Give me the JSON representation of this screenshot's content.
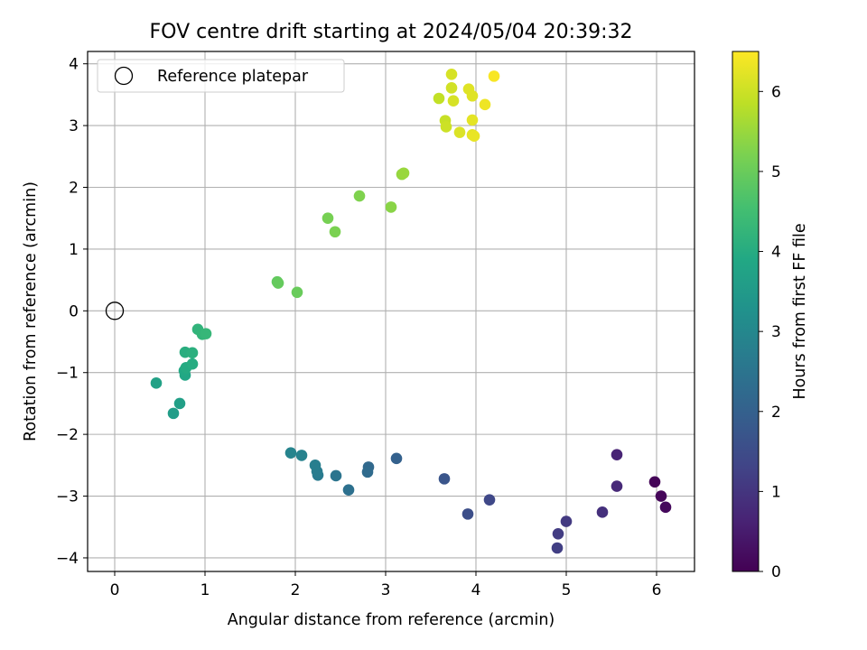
{
  "chart_data": {
    "type": "scatter",
    "title": "FOV centre drift starting at 2024/05/04 20:39:32",
    "xlabel": "Angular distance from reference (arcmin)",
    "ylabel": "Rotation from reference (arcmin)",
    "xlim": [
      -0.3,
      6.42
    ],
    "ylim": [
      -4.22,
      4.2
    ],
    "xticks": [
      0,
      1,
      2,
      3,
      4,
      5,
      6
    ],
    "yticks": [
      4,
      3,
      2,
      1,
      0,
      -1,
      -2,
      -3,
      -4
    ],
    "xtick_labels": [
      "0",
      "1",
      "2",
      "3",
      "4",
      "5",
      "6"
    ],
    "ytick_labels": [
      "4",
      "3",
      "2",
      "1",
      "0",
      "−1",
      "−2",
      "−3",
      "−4"
    ],
    "grid": true,
    "legend_position": "top-left",
    "legend": [
      "Reference platepar"
    ],
    "reference_point": {
      "x": 0,
      "y": 0
    },
    "colormap": "viridis",
    "colorbar": {
      "label": "Hours from first FF file",
      "range": [
        0,
        6.5
      ],
      "ticks": [
        0,
        1,
        2,
        3,
        4,
        5,
        6
      ],
      "tick_labels": [
        "0",
        "1",
        "2",
        "3",
        "4",
        "5",
        "6"
      ]
    },
    "points": [
      {
        "x": 5.98,
        "y": -2.77,
        "c": 0.05
      },
      {
        "x": 6.05,
        "y": -3.0,
        "c": 0.1
      },
      {
        "x": 6.1,
        "y": -3.18,
        "c": 0.15
      },
      {
        "x": 5.56,
        "y": -2.33,
        "c": 0.65
      },
      {
        "x": 5.56,
        "y": -2.84,
        "c": 0.75
      },
      {
        "x": 5.4,
        "y": -3.26,
        "c": 0.9
      },
      {
        "x": 5.0,
        "y": -3.41,
        "c": 1.1
      },
      {
        "x": 4.91,
        "y": -3.61,
        "c": 1.15
      },
      {
        "x": 4.9,
        "y": -3.84,
        "c": 1.2
      },
      {
        "x": 4.15,
        "y": -3.06,
        "c": 1.4
      },
      {
        "x": 3.91,
        "y": -3.29,
        "c": 1.55
      },
      {
        "x": 3.65,
        "y": -2.72,
        "c": 1.7
      },
      {
        "x": 3.12,
        "y": -2.39,
        "c": 2.0
      },
      {
        "x": 2.81,
        "y": -2.53,
        "c": 2.2
      },
      {
        "x": 2.8,
        "y": -2.61,
        "c": 2.25
      },
      {
        "x": 2.59,
        "y": -2.9,
        "c": 2.4
      },
      {
        "x": 2.45,
        "y": -2.67,
        "c": 2.5
      },
      {
        "x": 2.25,
        "y": -2.66,
        "c": 2.65
      },
      {
        "x": 2.24,
        "y": -2.6,
        "c": 2.7
      },
      {
        "x": 2.22,
        "y": -2.5,
        "c": 2.75
      },
      {
        "x": 2.07,
        "y": -2.34,
        "c": 2.85
      },
      {
        "x": 1.95,
        "y": -2.3,
        "c": 2.9
      },
      {
        "x": 0.46,
        "y": -1.17,
        "c": 3.7
      },
      {
        "x": 0.65,
        "y": -1.66,
        "c": 3.6
      },
      {
        "x": 0.72,
        "y": -1.5,
        "c": 3.65
      },
      {
        "x": 0.78,
        "y": -1.04,
        "c": 3.85
      },
      {
        "x": 0.77,
        "y": -0.97,
        "c": 3.9
      },
      {
        "x": 0.79,
        "y": -0.92,
        "c": 3.95
      },
      {
        "x": 0.86,
        "y": -0.86,
        "c": 4.0
      },
      {
        "x": 0.78,
        "y": -0.67,
        "c": 4.05
      },
      {
        "x": 0.86,
        "y": -0.68,
        "c": 4.1
      },
      {
        "x": 0.92,
        "y": -0.3,
        "c": 4.2
      },
      {
        "x": 0.97,
        "y": -0.38,
        "c": 4.25
      },
      {
        "x": 1.01,
        "y": -0.37,
        "c": 4.3
      },
      {
        "x": 1.8,
        "y": 0.47,
        "c": 4.9
      },
      {
        "x": 1.81,
        "y": 0.45,
        "c": 4.95
      },
      {
        "x": 2.02,
        "y": 0.3,
        "c": 5.0
      },
      {
        "x": 2.36,
        "y": 1.5,
        "c": 5.15
      },
      {
        "x": 2.44,
        "y": 1.28,
        "c": 5.2
      },
      {
        "x": 2.71,
        "y": 1.86,
        "c": 5.25
      },
      {
        "x": 3.06,
        "y": 1.68,
        "c": 5.35
      },
      {
        "x": 3.18,
        "y": 2.21,
        "c": 5.45
      },
      {
        "x": 3.2,
        "y": 2.23,
        "c": 5.5
      },
      {
        "x": 3.59,
        "y": 3.44,
        "c": 5.9
      },
      {
        "x": 3.66,
        "y": 3.08,
        "c": 5.95
      },
      {
        "x": 3.67,
        "y": 2.98,
        "c": 6.0
      },
      {
        "x": 3.73,
        "y": 3.61,
        "c": 6.05
      },
      {
        "x": 3.73,
        "y": 3.83,
        "c": 6.1
      },
      {
        "x": 3.75,
        "y": 3.4,
        "c": 6.1
      },
      {
        "x": 3.82,
        "y": 2.89,
        "c": 6.15
      },
      {
        "x": 3.92,
        "y": 3.59,
        "c": 6.2
      },
      {
        "x": 3.96,
        "y": 3.48,
        "c": 6.2
      },
      {
        "x": 3.96,
        "y": 3.09,
        "c": 6.25
      },
      {
        "x": 3.96,
        "y": 2.85,
        "c": 6.25
      },
      {
        "x": 3.98,
        "y": 2.83,
        "c": 6.3
      },
      {
        "x": 4.1,
        "y": 3.34,
        "c": 6.35
      },
      {
        "x": 4.2,
        "y": 3.8,
        "c": 6.45
      }
    ]
  }
}
